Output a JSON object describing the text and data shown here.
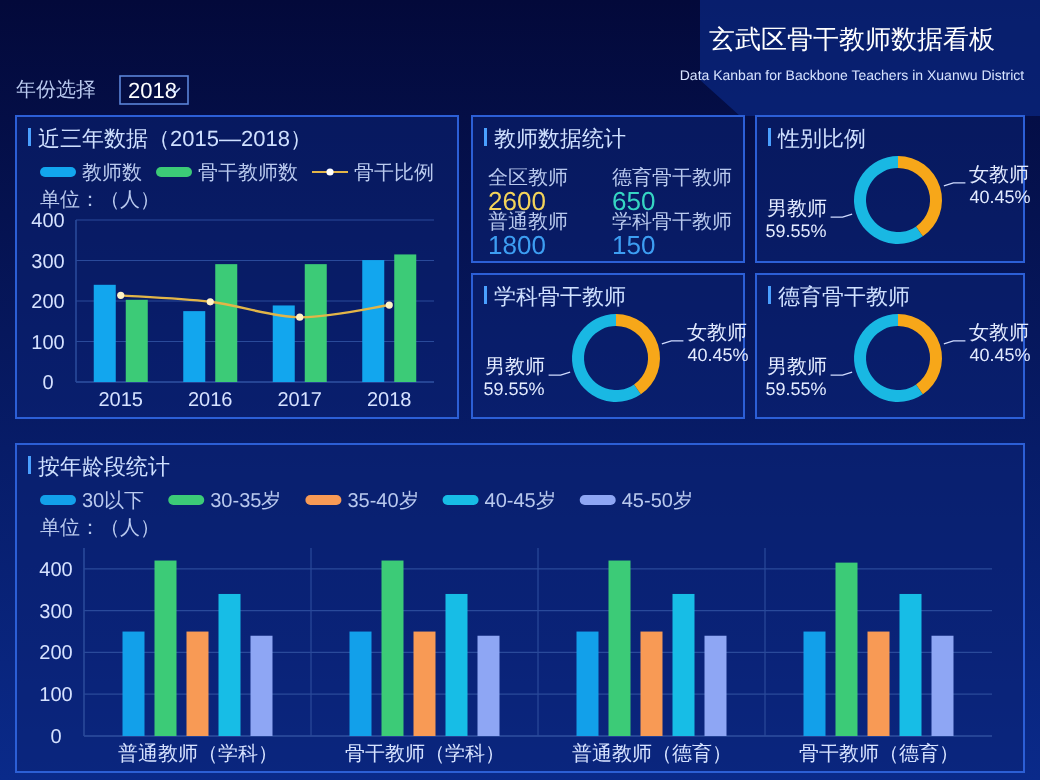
{
  "chart_data": [
    {
      "type": "other",
      "title": "玄武区骨干教师数据看板",
      "subtitle": "Data Kanban for Backbone Teachers in Xuanwu District",
      "annotations": [
        "年份选择",
        "2018"
      ]
    },
    {
      "type": "bar",
      "title": "近三年数据（2015—2018）",
      "ylabel": "单位：（人）",
      "categories": [
        "2015",
        "2016",
        "2017",
        "2018"
      ],
      "ylim": [
        0,
        400
      ],
      "yticks": [
        0,
        100,
        200,
        300,
        400
      ],
      "grid": "y",
      "legend": "top left",
      "series": [
        {
          "name": "教师数",
          "color": "#12a6ee",
          "values": [
            240,
            175,
            189,
            301
          ]
        },
        {
          "name": "骨干教师数",
          "color": "#3ccb77",
          "values": [
            203,
            291,
            291,
            315
          ]
        },
        {
          "name": "骨干比例",
          "type": "line",
          "color": "#e2b548",
          "marker": "circle",
          "values": [
            214,
            198,
            160,
            190
          ]
        }
      ]
    },
    {
      "type": "other",
      "title": "教师数据统计",
      "annotations": [
        "全区教师",
        "2600",
        "德育骨干教师",
        "650",
        "普通教师",
        "1800",
        "学科骨干教师",
        "150"
      ]
    },
    {
      "type": "donut",
      "title": "性别比例",
      "categories": [
        "男教师",
        "女教师"
      ],
      "values": [
        59.55,
        40.45
      ],
      "colors": [
        "#19b8e3",
        "#f7a719"
      ],
      "value_labels": [
        "59.55%",
        "40.45%"
      ]
    },
    {
      "type": "donut",
      "title": "学科骨干教师",
      "categories": [
        "男教师",
        "女教师"
      ],
      "values": [
        59.55,
        40.45
      ],
      "colors": [
        "#19b8e3",
        "#f7a719"
      ],
      "value_labels": [
        "59.55%",
        "40.45%"
      ]
    },
    {
      "type": "donut",
      "title": "德育骨干教师",
      "categories": [
        "男教师",
        "女教师"
      ],
      "values": [
        59.55,
        40.45
      ],
      "colors": [
        "#19b8e3",
        "#f7a719"
      ],
      "value_labels": [
        "59.55%",
        "40.45%"
      ]
    },
    {
      "type": "bar",
      "title": "按年龄段统计",
      "ylabel": "单位：（人）",
      "categories": [
        "普通教师（学科）",
        "骨干教师（学科）",
        "普通教师（德育）",
        "骨干教师（德育）"
      ],
      "ylim": [
        0,
        450
      ],
      "yticks": [
        0,
        100,
        200,
        300,
        400
      ],
      "grid": true,
      "legend": "top left",
      "series": [
        {
          "name": "30以下",
          "color": "#12a0ea",
          "values": [
            250,
            250,
            250,
            250
          ]
        },
        {
          "name": "30-35岁",
          "color": "#3ccb77",
          "values": [
            420,
            420,
            420,
            415
          ]
        },
        {
          "name": "35-40岁",
          "color": "#f89a55",
          "values": [
            250,
            250,
            250,
            250
          ]
        },
        {
          "name": "40-45岁",
          "color": "#17bde6",
          "values": [
            340,
            340,
            340,
            340
          ]
        },
        {
          "name": "45-50岁",
          "color": "#8ea6f4",
          "values": [
            240,
            240,
            240,
            240
          ]
        }
      ]
    }
  ]
}
